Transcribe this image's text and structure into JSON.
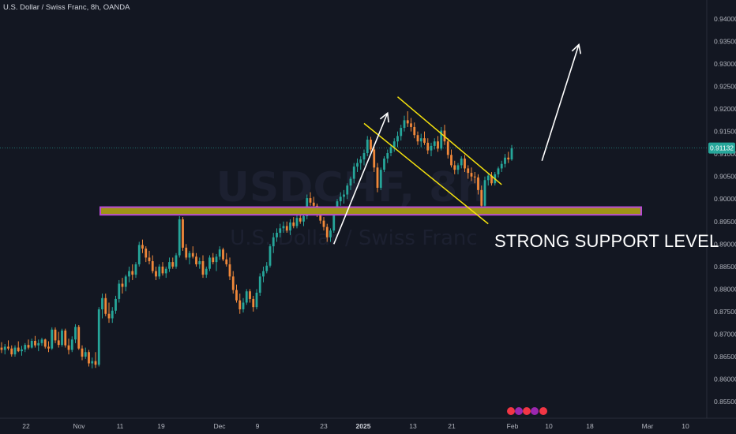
{
  "header": {
    "symbol_title": "U.S. Dollar / Swiss Franc, 8h, OANDA"
  },
  "watermark": {
    "symbol": "USDCHF, 8h",
    "description": "U.S. Dollar / Swiss Franc"
  },
  "annotation": {
    "support_label": "STRONG SUPPORT LEVEL"
  },
  "current_price": {
    "label": "0.91132",
    "value": 0.91132
  },
  "colors": {
    "background": "#131722",
    "bull_candle": "#26a69a",
    "bear_candle": "#f0883a",
    "support_zone_fill": "#a09415",
    "support_zone_border": "#b74bd4",
    "channel_lines": "#f5e20d",
    "arrows": "#ffffff",
    "price_tag": "#26a69a"
  },
  "chart_data": {
    "type": "candlestick",
    "instrument": "USDCHF",
    "timeframe": "8h",
    "y_axis": {
      "ticks": [
        0.94,
        0.935,
        0.93,
        0.925,
        0.92,
        0.915,
        0.91,
        0.905,
        0.9,
        0.895,
        0.89,
        0.885,
        0.88,
        0.875,
        0.87,
        0.865,
        0.86,
        0.855
      ],
      "tick_labels": [
        "0.94000",
        "0.93500",
        "0.93000",
        "0.92500",
        "0.92000",
        "0.91500",
        "0.91000",
        "0.90500",
        "0.90000",
        "0.89500",
        "0.89000",
        "0.88500",
        "0.88000",
        "0.87500",
        "0.87000",
        "0.86500",
        "0.86000",
        "0.85500"
      ],
      "range": [
        0.8535,
        0.9425
      ]
    },
    "x_axis": {
      "ticks": [
        "22",
        "Nov",
        "11",
        "19",
        "Dec",
        "9",
        "23",
        "2025",
        "13",
        "21",
        "Feb",
        "10",
        "18",
        "Mar",
        "10"
      ],
      "bold_ticks": [
        "2025"
      ]
    },
    "support_zone": {
      "low": 0.8965,
      "high": 0.8982
    },
    "channel": {
      "upper": {
        "from": [
          118,
          0.9227
        ],
        "to": [
          149,
          0.9032
        ]
      },
      "lower": {
        "from": [
          108,
          0.9168
        ],
        "to": [
          145,
          0.8945
        ]
      }
    },
    "arrows": [
      {
        "from": [
          99,
          0.89
        ],
        "to": [
          115,
          0.9191
        ]
      },
      {
        "from": [
          161,
          0.9085
        ],
        "to": [
          172,
          0.9343
        ]
      }
    ],
    "candles_ohlc": [
      [
        0.867,
        0.8682,
        0.8658,
        0.8665
      ],
      [
        0.8665,
        0.8678,
        0.8655,
        0.8672
      ],
      [
        0.8672,
        0.8686,
        0.8664,
        0.8668
      ],
      [
        0.8668,
        0.8675,
        0.865,
        0.8655
      ],
      [
        0.8655,
        0.8675,
        0.865,
        0.867
      ],
      [
        0.867,
        0.8684,
        0.866,
        0.8662
      ],
      [
        0.8662,
        0.8674,
        0.8652,
        0.8666
      ],
      [
        0.8666,
        0.868,
        0.866,
        0.8676
      ],
      [
        0.8676,
        0.8688,
        0.8666,
        0.867
      ],
      [
        0.867,
        0.869,
        0.8668,
        0.8685
      ],
      [
        0.8685,
        0.8696,
        0.867,
        0.8675
      ],
      [
        0.8675,
        0.8688,
        0.8662,
        0.868
      ],
      [
        0.868,
        0.8692,
        0.8674,
        0.8688
      ],
      [
        0.8688,
        0.869,
        0.8668,
        0.8672
      ],
      [
        0.8672,
        0.8684,
        0.866,
        0.8668
      ],
      [
        0.8668,
        0.8715,
        0.8665,
        0.871
      ],
      [
        0.871,
        0.8715,
        0.868,
        0.8686
      ],
      [
        0.8686,
        0.8705,
        0.867,
        0.8676
      ],
      [
        0.8676,
        0.8712,
        0.8672,
        0.8708
      ],
      [
        0.8708,
        0.8712,
        0.867,
        0.8675
      ],
      [
        0.8675,
        0.869,
        0.8655,
        0.8665
      ],
      [
        0.8665,
        0.8695,
        0.866,
        0.8688
      ],
      [
        0.8688,
        0.8722,
        0.868,
        0.8716
      ],
      [
        0.8716,
        0.872,
        0.8665,
        0.8668
      ],
      [
        0.8668,
        0.8675,
        0.8642,
        0.865
      ],
      [
        0.865,
        0.867,
        0.8645,
        0.866
      ],
      [
        0.866,
        0.8665,
        0.8628,
        0.8635
      ],
      [
        0.8635,
        0.8648,
        0.8624,
        0.864
      ],
      [
        0.864,
        0.866,
        0.8625,
        0.8632
      ],
      [
        0.8632,
        0.876,
        0.8628,
        0.8755
      ],
      [
        0.8755,
        0.879,
        0.8735,
        0.878
      ],
      [
        0.878,
        0.879,
        0.874,
        0.8745
      ],
      [
        0.8745,
        0.877,
        0.8725,
        0.8735
      ],
      [
        0.8735,
        0.876,
        0.8725,
        0.8752
      ],
      [
        0.8752,
        0.8785,
        0.8745,
        0.8778
      ],
      [
        0.8778,
        0.882,
        0.877,
        0.8812
      ],
      [
        0.8812,
        0.8825,
        0.879,
        0.8805
      ],
      [
        0.8805,
        0.8832,
        0.8795,
        0.8828
      ],
      [
        0.8828,
        0.885,
        0.8815,
        0.884
      ],
      [
        0.884,
        0.8855,
        0.882,
        0.8832
      ],
      [
        0.8832,
        0.886,
        0.8825,
        0.8855
      ],
      [
        0.8855,
        0.8905,
        0.885,
        0.8898
      ],
      [
        0.8898,
        0.891,
        0.888,
        0.889
      ],
      [
        0.889,
        0.8895,
        0.886,
        0.887
      ],
      [
        0.887,
        0.8885,
        0.8855,
        0.8862
      ],
      [
        0.8862,
        0.8875,
        0.8835,
        0.884
      ],
      [
        0.884,
        0.885,
        0.882,
        0.8828
      ],
      [
        0.8828,
        0.8855,
        0.8822,
        0.885
      ],
      [
        0.885,
        0.886,
        0.883,
        0.8835
      ],
      [
        0.8835,
        0.885,
        0.8825,
        0.8845
      ],
      [
        0.8845,
        0.887,
        0.8838,
        0.886
      ],
      [
        0.886,
        0.887,
        0.8845,
        0.885
      ],
      [
        0.885,
        0.888,
        0.8845,
        0.8875
      ],
      [
        0.8875,
        0.8962,
        0.887,
        0.8955
      ],
      [
        0.8955,
        0.896,
        0.8885,
        0.8892
      ],
      [
        0.8892,
        0.89,
        0.8865,
        0.887
      ],
      [
        0.887,
        0.8885,
        0.8855,
        0.888
      ],
      [
        0.888,
        0.8895,
        0.8868,
        0.8872
      ],
      [
        0.8872,
        0.888,
        0.885,
        0.8855
      ],
      [
        0.8855,
        0.887,
        0.8845,
        0.8862
      ],
      [
        0.8862,
        0.8875,
        0.8825,
        0.8832
      ],
      [
        0.8832,
        0.885,
        0.8825,
        0.8845
      ],
      [
        0.8845,
        0.8875,
        0.884,
        0.887
      ],
      [
        0.887,
        0.888,
        0.8855,
        0.886
      ],
      [
        0.886,
        0.8878,
        0.884,
        0.8872
      ],
      [
        0.8872,
        0.8895,
        0.8865,
        0.8888
      ],
      [
        0.8888,
        0.8892,
        0.8862,
        0.8866
      ],
      [
        0.8866,
        0.888,
        0.885,
        0.8855
      ],
      [
        0.8855,
        0.887,
        0.882,
        0.8828
      ],
      [
        0.8828,
        0.884,
        0.879,
        0.8798
      ],
      [
        0.8798,
        0.881,
        0.877,
        0.8775
      ],
      [
        0.8775,
        0.879,
        0.8745,
        0.8755
      ],
      [
        0.8755,
        0.878,
        0.8748,
        0.877
      ],
      [
        0.877,
        0.88,
        0.8765,
        0.8795
      ],
      [
        0.8795,
        0.88,
        0.877,
        0.8778
      ],
      [
        0.8778,
        0.8785,
        0.875,
        0.876
      ],
      [
        0.876,
        0.88,
        0.8755,
        0.8792
      ],
      [
        0.8792,
        0.8835,
        0.8785,
        0.8828
      ],
      [
        0.8828,
        0.885,
        0.8815,
        0.884
      ],
      [
        0.884,
        0.886,
        0.8835,
        0.8852
      ],
      [
        0.8852,
        0.89,
        0.8848,
        0.8895
      ],
      [
        0.8895,
        0.8925,
        0.888,
        0.8915
      ],
      [
        0.8915,
        0.8935,
        0.8905,
        0.8925
      ],
      [
        0.8925,
        0.8945,
        0.8915,
        0.8935
      ],
      [
        0.8935,
        0.895,
        0.8925,
        0.894
      ],
      [
        0.894,
        0.895,
        0.8925,
        0.893
      ],
      [
        0.893,
        0.8955,
        0.892,
        0.8948
      ],
      [
        0.8948,
        0.896,
        0.8935,
        0.894
      ],
      [
        0.894,
        0.8965,
        0.8935,
        0.8958
      ],
      [
        0.8958,
        0.897,
        0.8945,
        0.895
      ],
      [
        0.895,
        0.8968,
        0.894,
        0.8962
      ],
      [
        0.8962,
        0.901,
        0.8955,
        0.9002
      ],
      [
        0.9002,
        0.9015,
        0.8985,
        0.8992
      ],
      [
        0.8992,
        0.9005,
        0.8975,
        0.8985
      ],
      [
        0.8985,
        0.899,
        0.896,
        0.8968
      ],
      [
        0.8968,
        0.8975,
        0.8945,
        0.8952
      ],
      [
        0.8952,
        0.896,
        0.893,
        0.8938
      ],
      [
        0.8938,
        0.8945,
        0.8905,
        0.8915
      ],
      [
        0.8915,
        0.8935,
        0.8905,
        0.893
      ],
      [
        0.893,
        0.8975,
        0.8925,
        0.897
      ],
      [
        0.897,
        0.9,
        0.8965,
        0.8995
      ],
      [
        0.8995,
        0.9015,
        0.8985,
        0.9005
      ],
      [
        0.9005,
        0.902,
        0.899,
        0.901
      ],
      [
        0.901,
        0.9035,
        0.9,
        0.903
      ],
      [
        0.903,
        0.905,
        0.902,
        0.9045
      ],
      [
        0.9045,
        0.908,
        0.9035,
        0.9072
      ],
      [
        0.9072,
        0.909,
        0.906,
        0.908
      ],
      [
        0.908,
        0.9095,
        0.9065,
        0.9088
      ],
      [
        0.9088,
        0.911,
        0.9075,
        0.9102
      ],
      [
        0.9102,
        0.914,
        0.9095,
        0.9132
      ],
      [
        0.9132,
        0.9138,
        0.9105,
        0.911
      ],
      [
        0.911,
        0.912,
        0.906,
        0.907
      ],
      [
        0.907,
        0.908,
        0.9015,
        0.9025
      ],
      [
        0.9025,
        0.907,
        0.902,
        0.9065
      ],
      [
        0.9065,
        0.9095,
        0.906,
        0.909
      ],
      [
        0.909,
        0.911,
        0.908,
        0.9102
      ],
      [
        0.9102,
        0.912,
        0.9095,
        0.9115
      ],
      [
        0.9115,
        0.9135,
        0.9105,
        0.9128
      ],
      [
        0.9128,
        0.915,
        0.9115,
        0.914
      ],
      [
        0.914,
        0.9165,
        0.913,
        0.9158
      ],
      [
        0.9158,
        0.9185,
        0.915,
        0.9175
      ],
      [
        0.9175,
        0.9195,
        0.916,
        0.9168
      ],
      [
        0.9168,
        0.918,
        0.915,
        0.916
      ],
      [
        0.916,
        0.917,
        0.9135,
        0.9142
      ],
      [
        0.9142,
        0.915,
        0.912,
        0.9128
      ],
      [
        0.9128,
        0.9145,
        0.9115,
        0.9135
      ],
      [
        0.9135,
        0.915,
        0.912,
        0.9125
      ],
      [
        0.9125,
        0.9135,
        0.91,
        0.9108
      ],
      [
        0.9108,
        0.9125,
        0.9095,
        0.9118
      ],
      [
        0.9118,
        0.9135,
        0.911,
        0.9128
      ],
      [
        0.9128,
        0.914,
        0.9105,
        0.9112
      ],
      [
        0.9112,
        0.916,
        0.9108,
        0.9152
      ],
      [
        0.9152,
        0.9165,
        0.912,
        0.9128
      ],
      [
        0.9128,
        0.9135,
        0.909,
        0.9098
      ],
      [
        0.9098,
        0.911,
        0.907,
        0.9075
      ],
      [
        0.9075,
        0.9085,
        0.9055,
        0.9065
      ],
      [
        0.9065,
        0.908,
        0.9055,
        0.9075
      ],
      [
        0.9075,
        0.9095,
        0.9068,
        0.909
      ],
      [
        0.909,
        0.9098,
        0.906,
        0.9068
      ],
      [
        0.9068,
        0.9075,
        0.9045,
        0.9058
      ],
      [
        0.9058,
        0.907,
        0.904,
        0.905
      ],
      [
        0.905,
        0.906,
        0.9035,
        0.9048
      ],
      [
        0.9048,
        0.9055,
        0.901,
        0.902
      ],
      [
        0.902,
        0.903,
        0.8975,
        0.8985
      ],
      [
        0.8985,
        0.905,
        0.898,
        0.9042
      ],
      [
        0.9042,
        0.9058,
        0.903,
        0.9052
      ],
      [
        0.9052,
        0.906,
        0.903,
        0.9035
      ],
      [
        0.9035,
        0.906,
        0.903,
        0.9055
      ],
      [
        0.9055,
        0.9072,
        0.9048,
        0.9068
      ],
      [
        0.9068,
        0.9085,
        0.906,
        0.9078
      ],
      [
        0.9078,
        0.91,
        0.907,
        0.9092
      ],
      [
        0.9092,
        0.9105,
        0.908,
        0.9088
      ],
      [
        0.9088,
        0.912,
        0.9085,
        0.9113
      ]
    ]
  }
}
